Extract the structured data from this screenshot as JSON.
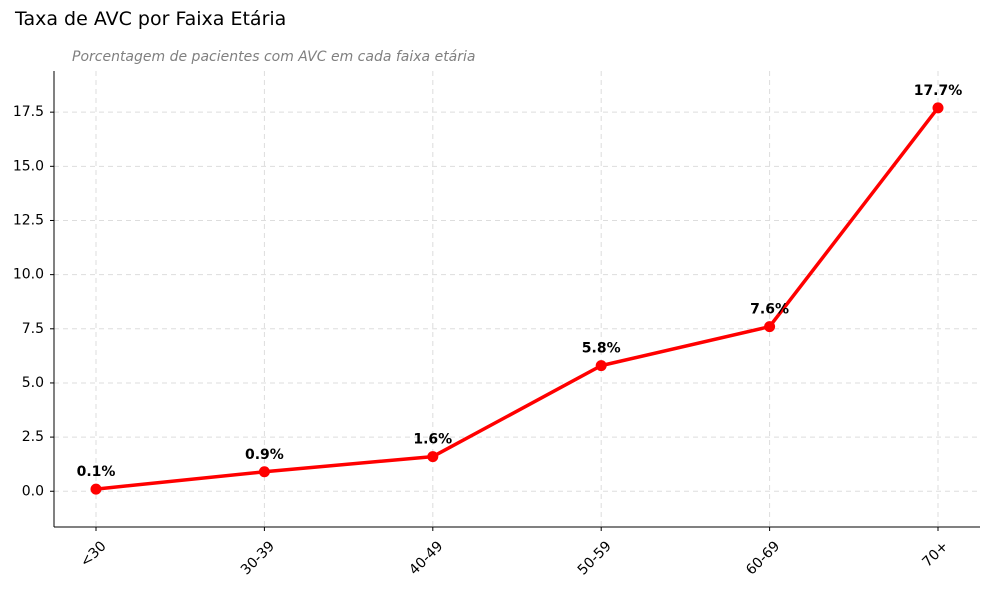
{
  "chart_data": {
    "type": "line",
    "title": "Taxa de AVC por Faixa Etária",
    "subtitle": "Porcentagem de pacientes com AVC em cada faixa etária",
    "xlabel": "",
    "ylabel": "",
    "categories": [
      "<30",
      "30-39",
      "40-49",
      "50-59",
      "60-69",
      "70+"
    ],
    "series": [
      {
        "values": [
          0.1,
          0.9,
          1.6,
          5.8,
          7.6,
          17.7
        ],
        "color": "#ff0000"
      }
    ],
    "data_labels": [
      "0.1%",
      "0.9%",
      "1.6%",
      "5.8%",
      "7.6%",
      "17.7%"
    ],
    "ylim": [
      -1.65,
      19.4
    ],
    "yticks": [
      0.0,
      2.5,
      5.0,
      7.5,
      10.0,
      12.5,
      15.0,
      17.5
    ],
    "ytick_labels": [
      "0.0",
      "2.5",
      "5.0",
      "7.5",
      "10.0",
      "12.5",
      "15.0",
      "17.5"
    ],
    "grid": true,
    "legend": false
  }
}
